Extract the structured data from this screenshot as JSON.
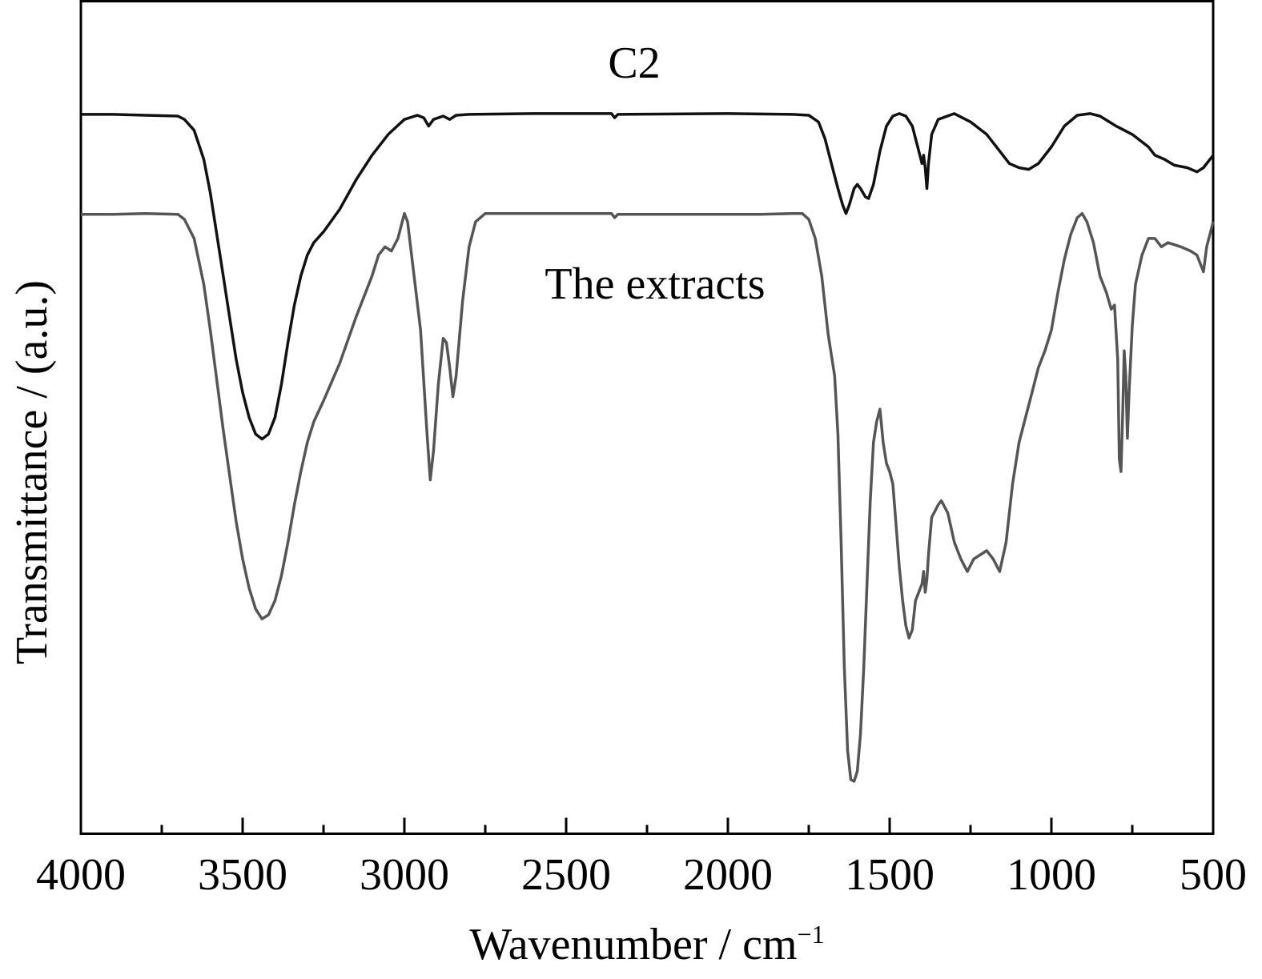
{
  "chart_data": {
    "type": "line",
    "xlabel": "Wavenumber / cm",
    "xlabel_sup": "−1",
    "ylabel": "Transmittance / (a.u.)",
    "xlim": [
      4000,
      500
    ],
    "x_reversed": true,
    "y_ticks_shown": false,
    "ylim": [
      0,
      100
    ],
    "grid": false,
    "xticks": [
      4000,
      3500,
      3000,
      2500,
      2000,
      1500,
      1000,
      500
    ],
    "xtick_labels": [
      "4000",
      "3500",
      "3000",
      "2500",
      "2000",
      "1500",
      "1000",
      "500"
    ],
    "series": [
      {
        "name": "C2",
        "color": "#111111",
        "points": [
          [
            4000,
            86.4
          ],
          [
            3900,
            86.4
          ],
          [
            3800,
            86.3
          ],
          [
            3700,
            86.2
          ],
          [
            3680,
            85.8
          ],
          [
            3650,
            84.5
          ],
          [
            3620,
            81.0
          ],
          [
            3600,
            77.0
          ],
          [
            3580,
            72.0
          ],
          [
            3560,
            67.0
          ],
          [
            3540,
            62.0
          ],
          [
            3520,
            57.0
          ],
          [
            3500,
            53.0
          ],
          [
            3480,
            50.0
          ],
          [
            3460,
            48.0
          ],
          [
            3440,
            47.4
          ],
          [
            3420,
            48.0
          ],
          [
            3400,
            50.0
          ],
          [
            3380,
            54.0
          ],
          [
            3360,
            59.0
          ],
          [
            3340,
            63.5
          ],
          [
            3320,
            67.0
          ],
          [
            3300,
            69.5
          ],
          [
            3280,
            71.0
          ],
          [
            3250,
            72.3
          ],
          [
            3200,
            75.0
          ],
          [
            3150,
            78.5
          ],
          [
            3100,
            81.5
          ],
          [
            3050,
            84.0
          ],
          [
            3000,
            85.8
          ],
          [
            2960,
            86.3
          ],
          [
            2940,
            86.0
          ],
          [
            2925,
            85.0
          ],
          [
            2910,
            85.8
          ],
          [
            2880,
            86.2
          ],
          [
            2860,
            85.8
          ],
          [
            2840,
            86.3
          ],
          [
            2800,
            86.4
          ],
          [
            2600,
            86.5
          ],
          [
            2360,
            86.5
          ],
          [
            2350,
            86.0
          ],
          [
            2340,
            86.4
          ],
          [
            2000,
            86.5
          ],
          [
            1800,
            86.4
          ],
          [
            1750,
            86.3
          ],
          [
            1720,
            85.5
          ],
          [
            1700,
            83.5
          ],
          [
            1680,
            80.5
          ],
          [
            1660,
            77.5
          ],
          [
            1645,
            75.5
          ],
          [
            1635,
            74.5
          ],
          [
            1625,
            75.5
          ],
          [
            1610,
            77.5
          ],
          [
            1600,
            78.0
          ],
          [
            1590,
            77.5
          ],
          [
            1575,
            76.5
          ],
          [
            1565,
            76.3
          ],
          [
            1550,
            78.0
          ],
          [
            1530,
            82.0
          ],
          [
            1510,
            85.0
          ],
          [
            1490,
            86.2
          ],
          [
            1470,
            86.5
          ],
          [
            1450,
            86.2
          ],
          [
            1430,
            85.0
          ],
          [
            1410,
            82.0
          ],
          [
            1400,
            80.5
          ],
          [
            1395,
            81.5
          ],
          [
            1390,
            80.0
          ],
          [
            1385,
            77.5
          ],
          [
            1380,
            80.5
          ],
          [
            1370,
            84.0
          ],
          [
            1350,
            85.8
          ],
          [
            1300,
            86.5
          ],
          [
            1250,
            85.5
          ],
          [
            1200,
            84.0
          ],
          [
            1160,
            82.0
          ],
          [
            1130,
            80.5
          ],
          [
            1100,
            80.0
          ],
          [
            1070,
            79.8
          ],
          [
            1040,
            80.5
          ],
          [
            1000,
            82.5
          ],
          [
            960,
            85.0
          ],
          [
            920,
            86.3
          ],
          [
            880,
            86.5
          ],
          [
            850,
            86.2
          ],
          [
            800,
            85.0
          ],
          [
            750,
            84.0
          ],
          [
            700,
            82.5
          ],
          [
            680,
            81.5
          ],
          [
            650,
            81.0
          ],
          [
            620,
            80.3
          ],
          [
            580,
            80.0
          ],
          [
            550,
            79.5
          ],
          [
            530,
            80.0
          ],
          [
            510,
            81.0
          ],
          [
            500,
            81.5
          ]
        ]
      },
      {
        "name": "The extracts",
        "color": "#555555",
        "points": [
          [
            4000,
            74.4
          ],
          [
            3900,
            74.4
          ],
          [
            3800,
            74.5
          ],
          [
            3700,
            74.4
          ],
          [
            3680,
            73.8
          ],
          [
            3650,
            71.5
          ],
          [
            3620,
            66.0
          ],
          [
            3600,
            60.5
          ],
          [
            3580,
            54.5
          ],
          [
            3560,
            48.5
          ],
          [
            3540,
            43.0
          ],
          [
            3520,
            37.5
          ],
          [
            3500,
            33.0
          ],
          [
            3480,
            29.5
          ],
          [
            3460,
            27.0
          ],
          [
            3440,
            25.8
          ],
          [
            3420,
            26.3
          ],
          [
            3400,
            28.0
          ],
          [
            3380,
            31.0
          ],
          [
            3360,
            35.0
          ],
          [
            3340,
            39.5
          ],
          [
            3320,
            43.5
          ],
          [
            3300,
            47.0
          ],
          [
            3280,
            49.5
          ],
          [
            3250,
            52.0
          ],
          [
            3200,
            56.5
          ],
          [
            3150,
            62.0
          ],
          [
            3100,
            67.0
          ],
          [
            3080,
            69.5
          ],
          [
            3060,
            70.5
          ],
          [
            3040,
            70.0
          ],
          [
            3020,
            71.5
          ],
          [
            3000,
            74.5
          ],
          [
            2990,
            73.5
          ],
          [
            2970,
            67.0
          ],
          [
            2950,
            60.5
          ],
          [
            2930,
            48.0
          ],
          [
            2920,
            42.5
          ],
          [
            2910,
            46.0
          ],
          [
            2895,
            54.0
          ],
          [
            2880,
            59.5
          ],
          [
            2870,
            59.0
          ],
          [
            2860,
            56.0
          ],
          [
            2850,
            52.5
          ],
          [
            2840,
            55.0
          ],
          [
            2820,
            64.0
          ],
          [
            2800,
            70.5
          ],
          [
            2780,
            73.5
          ],
          [
            2750,
            74.5
          ],
          [
            2600,
            74.5
          ],
          [
            2360,
            74.5
          ],
          [
            2350,
            74.0
          ],
          [
            2340,
            74.4
          ],
          [
            2000,
            74.4
          ],
          [
            1900,
            74.4
          ],
          [
            1800,
            74.5
          ],
          [
            1770,
            74.5
          ],
          [
            1750,
            73.8
          ],
          [
            1730,
            71.5
          ],
          [
            1710,
            67.0
          ],
          [
            1690,
            60.0
          ],
          [
            1670,
            55.0
          ],
          [
            1660,
            48.0
          ],
          [
            1650,
            35.0
          ],
          [
            1640,
            20.0
          ],
          [
            1630,
            10.0
          ],
          [
            1620,
            6.5
          ],
          [
            1610,
            6.3
          ],
          [
            1600,
            7.5
          ],
          [
            1590,
            12.0
          ],
          [
            1580,
            20.0
          ],
          [
            1570,
            30.0
          ],
          [
            1560,
            40.0
          ],
          [
            1550,
            47.0
          ],
          [
            1540,
            49.5
          ],
          [
            1530,
            51.0
          ],
          [
            1520,
            47.0
          ],
          [
            1510,
            44.5
          ],
          [
            1500,
            43.5
          ],
          [
            1490,
            42.0
          ],
          [
            1480,
            37.0
          ],
          [
            1470,
            32.0
          ],
          [
            1460,
            28.0
          ],
          [
            1450,
            25.0
          ],
          [
            1440,
            23.5
          ],
          [
            1430,
            24.5
          ],
          [
            1420,
            28.0
          ],
          [
            1400,
            30.0
          ],
          [
            1395,
            31.5
          ],
          [
            1390,
            29.0
          ],
          [
            1385,
            30.5
          ],
          [
            1380,
            33.5
          ],
          [
            1370,
            38.0
          ],
          [
            1350,
            39.5
          ],
          [
            1340,
            40.0
          ],
          [
            1320,
            38.5
          ],
          [
            1300,
            35.0
          ],
          [
            1280,
            33.0
          ],
          [
            1260,
            31.5
          ],
          [
            1240,
            33.0
          ],
          [
            1220,
            33.5
          ],
          [
            1200,
            34.0
          ],
          [
            1180,
            33.0
          ],
          [
            1160,
            31.5
          ],
          [
            1140,
            35.0
          ],
          [
            1120,
            42.0
          ],
          [
            1100,
            47.0
          ],
          [
            1080,
            50.0
          ],
          [
            1060,
            53.0
          ],
          [
            1040,
            56.0
          ],
          [
            1020,
            58.0
          ],
          [
            1000,
            60.5
          ],
          [
            980,
            65.0
          ],
          [
            960,
            69.0
          ],
          [
            940,
            72.0
          ],
          [
            920,
            74.0
          ],
          [
            905,
            74.5
          ],
          [
            890,
            73.5
          ],
          [
            870,
            71.0
          ],
          [
            850,
            67.0
          ],
          [
            830,
            65.0
          ],
          [
            815,
            63.0
          ],
          [
            805,
            63.5
          ],
          [
            795,
            57.0
          ],
          [
            790,
            45.0
          ],
          [
            785,
            43.5
          ],
          [
            780,
            50.0
          ],
          [
            775,
            58.0
          ],
          [
            770,
            55.0
          ],
          [
            765,
            47.5
          ],
          [
            760,
            53.0
          ],
          [
            750,
            61.0
          ],
          [
            740,
            66.0
          ],
          [
            720,
            69.5
          ],
          [
            700,
            71.5
          ],
          [
            680,
            71.5
          ],
          [
            660,
            70.5
          ],
          [
            640,
            71.0
          ],
          [
            600,
            70.5
          ],
          [
            570,
            70.0
          ],
          [
            550,
            69.5
          ],
          [
            530,
            67.5
          ],
          [
            520,
            70.5
          ],
          [
            510,
            72.0
          ],
          [
            500,
            73.5
          ]
        ]
      }
    ]
  }
}
